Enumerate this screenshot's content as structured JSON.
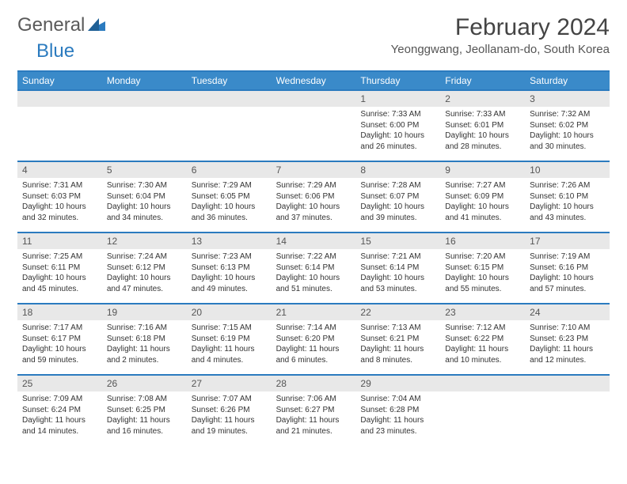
{
  "logo": {
    "word1": "General",
    "word2": "Blue"
  },
  "title": "February 2024",
  "location": "Yeonggwang, Jeollanam-do, South Korea",
  "colors": {
    "header_bar": "#3a8ac9",
    "accent_line": "#2b7bbf",
    "daynum_bg": "#e8e8e8",
    "text": "#333333",
    "logo_gray": "#5a5a5a",
    "logo_blue": "#2b7bbf"
  },
  "day_names": [
    "Sunday",
    "Monday",
    "Tuesday",
    "Wednesday",
    "Thursday",
    "Friday",
    "Saturday"
  ],
  "weeks": [
    [
      null,
      null,
      null,
      null,
      {
        "n": "1",
        "sunrise": "7:33 AM",
        "sunset": "6:00 PM",
        "daylight": "10 hours and 26 minutes."
      },
      {
        "n": "2",
        "sunrise": "7:33 AM",
        "sunset": "6:01 PM",
        "daylight": "10 hours and 28 minutes."
      },
      {
        "n": "3",
        "sunrise": "7:32 AM",
        "sunset": "6:02 PM",
        "daylight": "10 hours and 30 minutes."
      }
    ],
    [
      {
        "n": "4",
        "sunrise": "7:31 AM",
        "sunset": "6:03 PM",
        "daylight": "10 hours and 32 minutes."
      },
      {
        "n": "5",
        "sunrise": "7:30 AM",
        "sunset": "6:04 PM",
        "daylight": "10 hours and 34 minutes."
      },
      {
        "n": "6",
        "sunrise": "7:29 AM",
        "sunset": "6:05 PM",
        "daylight": "10 hours and 36 minutes."
      },
      {
        "n": "7",
        "sunrise": "7:29 AM",
        "sunset": "6:06 PM",
        "daylight": "10 hours and 37 minutes."
      },
      {
        "n": "8",
        "sunrise": "7:28 AM",
        "sunset": "6:07 PM",
        "daylight": "10 hours and 39 minutes."
      },
      {
        "n": "9",
        "sunrise": "7:27 AM",
        "sunset": "6:09 PM",
        "daylight": "10 hours and 41 minutes."
      },
      {
        "n": "10",
        "sunrise": "7:26 AM",
        "sunset": "6:10 PM",
        "daylight": "10 hours and 43 minutes."
      }
    ],
    [
      {
        "n": "11",
        "sunrise": "7:25 AM",
        "sunset": "6:11 PM",
        "daylight": "10 hours and 45 minutes."
      },
      {
        "n": "12",
        "sunrise": "7:24 AM",
        "sunset": "6:12 PM",
        "daylight": "10 hours and 47 minutes."
      },
      {
        "n": "13",
        "sunrise": "7:23 AM",
        "sunset": "6:13 PM",
        "daylight": "10 hours and 49 minutes."
      },
      {
        "n": "14",
        "sunrise": "7:22 AM",
        "sunset": "6:14 PM",
        "daylight": "10 hours and 51 minutes."
      },
      {
        "n": "15",
        "sunrise": "7:21 AM",
        "sunset": "6:14 PM",
        "daylight": "10 hours and 53 minutes."
      },
      {
        "n": "16",
        "sunrise": "7:20 AM",
        "sunset": "6:15 PM",
        "daylight": "10 hours and 55 minutes."
      },
      {
        "n": "17",
        "sunrise": "7:19 AM",
        "sunset": "6:16 PM",
        "daylight": "10 hours and 57 minutes."
      }
    ],
    [
      {
        "n": "18",
        "sunrise": "7:17 AM",
        "sunset": "6:17 PM",
        "daylight": "10 hours and 59 minutes."
      },
      {
        "n": "19",
        "sunrise": "7:16 AM",
        "sunset": "6:18 PM",
        "daylight": "11 hours and 2 minutes."
      },
      {
        "n": "20",
        "sunrise": "7:15 AM",
        "sunset": "6:19 PM",
        "daylight": "11 hours and 4 minutes."
      },
      {
        "n": "21",
        "sunrise": "7:14 AM",
        "sunset": "6:20 PM",
        "daylight": "11 hours and 6 minutes."
      },
      {
        "n": "22",
        "sunrise": "7:13 AM",
        "sunset": "6:21 PM",
        "daylight": "11 hours and 8 minutes."
      },
      {
        "n": "23",
        "sunrise": "7:12 AM",
        "sunset": "6:22 PM",
        "daylight": "11 hours and 10 minutes."
      },
      {
        "n": "24",
        "sunrise": "7:10 AM",
        "sunset": "6:23 PM",
        "daylight": "11 hours and 12 minutes."
      }
    ],
    [
      {
        "n": "25",
        "sunrise": "7:09 AM",
        "sunset": "6:24 PM",
        "daylight": "11 hours and 14 minutes."
      },
      {
        "n": "26",
        "sunrise": "7:08 AM",
        "sunset": "6:25 PM",
        "daylight": "11 hours and 16 minutes."
      },
      {
        "n": "27",
        "sunrise": "7:07 AM",
        "sunset": "6:26 PM",
        "daylight": "11 hours and 19 minutes."
      },
      {
        "n": "28",
        "sunrise": "7:06 AM",
        "sunset": "6:27 PM",
        "daylight": "11 hours and 21 minutes."
      },
      {
        "n": "29",
        "sunrise": "7:04 AM",
        "sunset": "6:28 PM",
        "daylight": "11 hours and 23 minutes."
      },
      null,
      null
    ]
  ],
  "labels": {
    "sunrise": "Sunrise: ",
    "sunset": "Sunset: ",
    "daylight": "Daylight: "
  }
}
